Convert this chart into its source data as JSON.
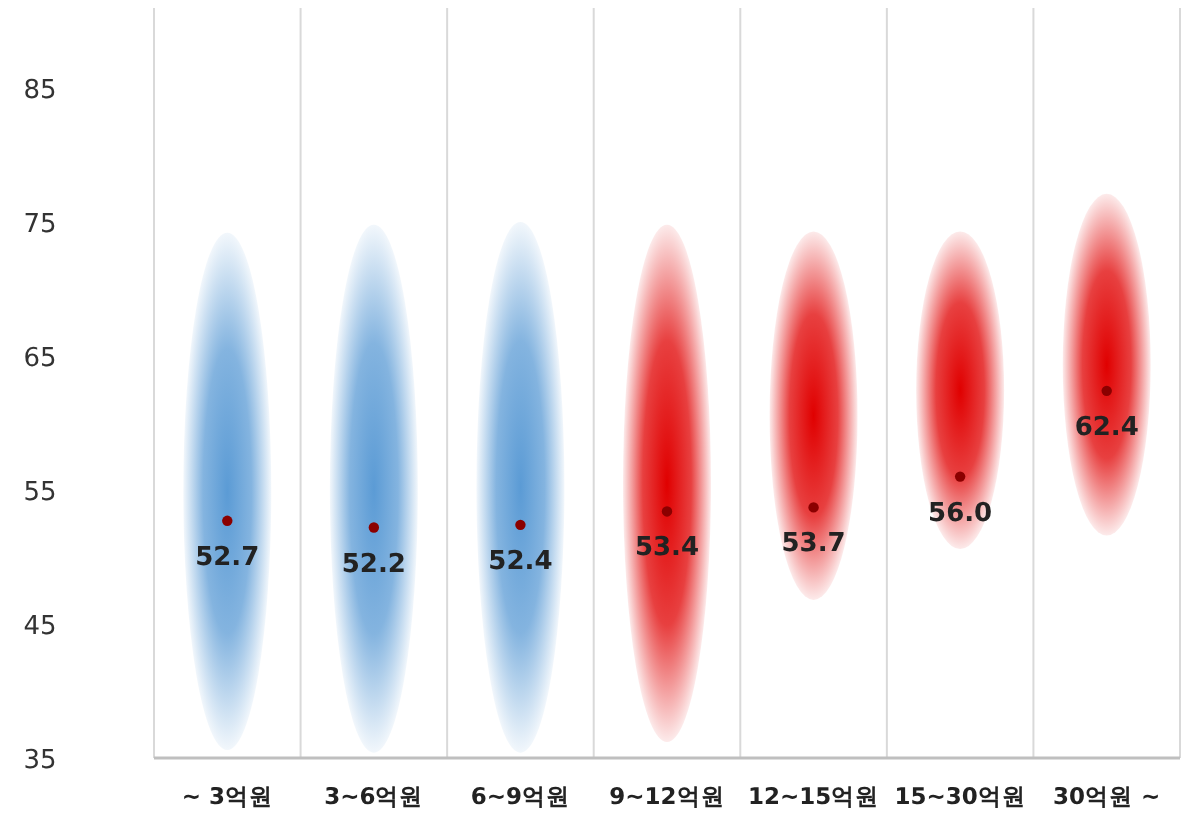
{
  "chart_data": {
    "type": "bar",
    "categories": [
      "~ 3억원",
      "3~6억원",
      "6~9억원",
      "9~12억원",
      "12~15억원",
      "15~30억원",
      "30억원 ~"
    ],
    "ylim": [
      35,
      85
    ],
    "yticks": [
      35,
      45,
      55,
      65,
      75,
      85
    ],
    "grid": "x",
    "series": [
      {
        "base": [
          35.6,
          35.4,
          35.4,
          36.2,
          46.8,
          50.6,
          51.6
        ],
        "values": [
          38.6,
          39.4,
          39.6,
          38.6,
          27.5,
          23.7,
          25.5
        ],
        "colors": [
          "#5b9bd5",
          "#5b9bd5",
          "#5b9bd5",
          "#e00000",
          "#e00000",
          "#e00000",
          "#e00000"
        ]
      },
      {
        "type": "scatter",
        "marker": "circle",
        "color": "#8b0000",
        "values": [
          52.7,
          52.2,
          52.4,
          53.4,
          53.7,
          56.0,
          62.4
        ],
        "value_labels": [
          "52.7",
          "52.2",
          "52.4",
          "53.4",
          "53.7",
          "56.0",
          "62.4"
        ]
      }
    ]
  }
}
